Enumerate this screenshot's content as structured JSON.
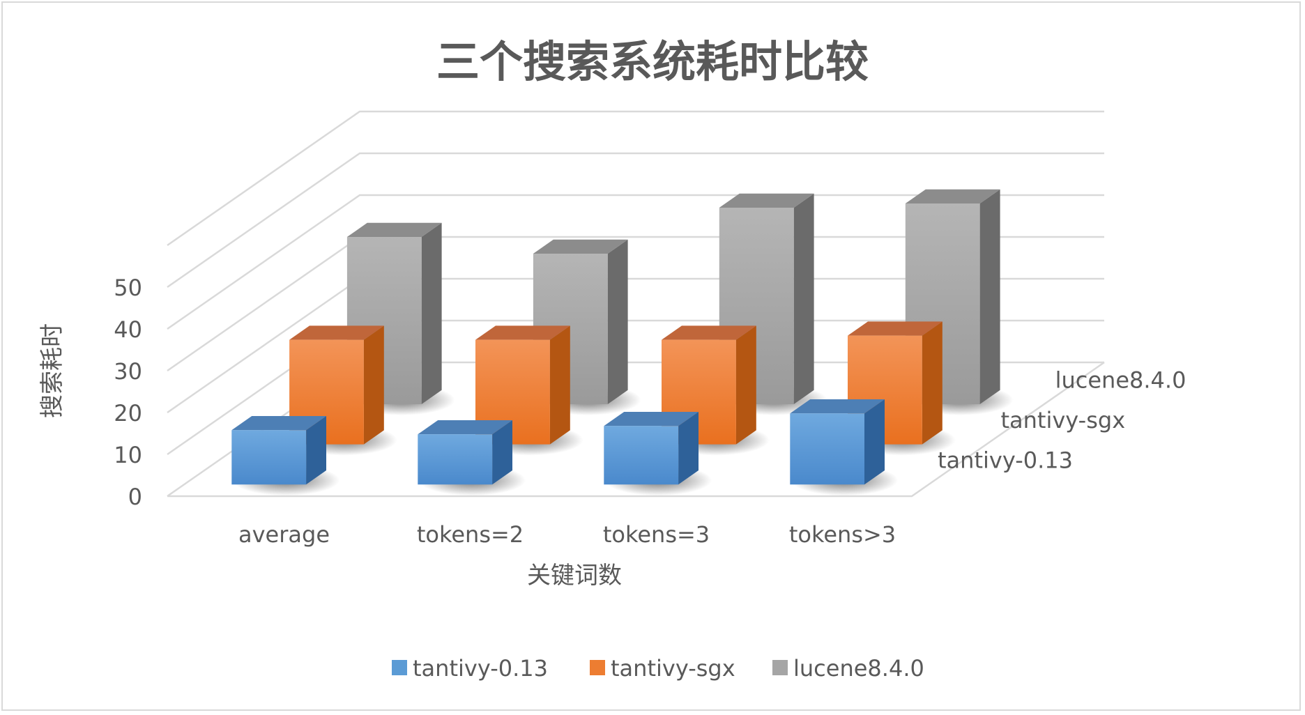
{
  "chart_data": {
    "type": "bar",
    "subtype": "3d-column",
    "title": "三个搜索系统耗时比较",
    "xlabel": "关键词数",
    "ylabel": "搜索耗时",
    "categories": [
      "average",
      "tokens=2",
      "tokens=3",
      "tokens>3"
    ],
    "series": [
      {
        "name": "tantivy-0.13",
        "color": "#5b9bd5",
        "values": [
          13,
          12,
          14,
          17
        ]
      },
      {
        "name": "tantivy-sgx",
        "color": "#ed7d31",
        "values": [
          25,
          25,
          25,
          26
        ]
      },
      {
        "name": "lucene8.4.0",
        "color": "#a5a5a5",
        "values": [
          40,
          36,
          47,
          48
        ]
      }
    ],
    "yticks": [
      "0",
      "10",
      "20",
      "30",
      "40",
      "50"
    ],
    "ylim": [
      0,
      50
    ],
    "grid": true,
    "legend_position": "bottom"
  }
}
